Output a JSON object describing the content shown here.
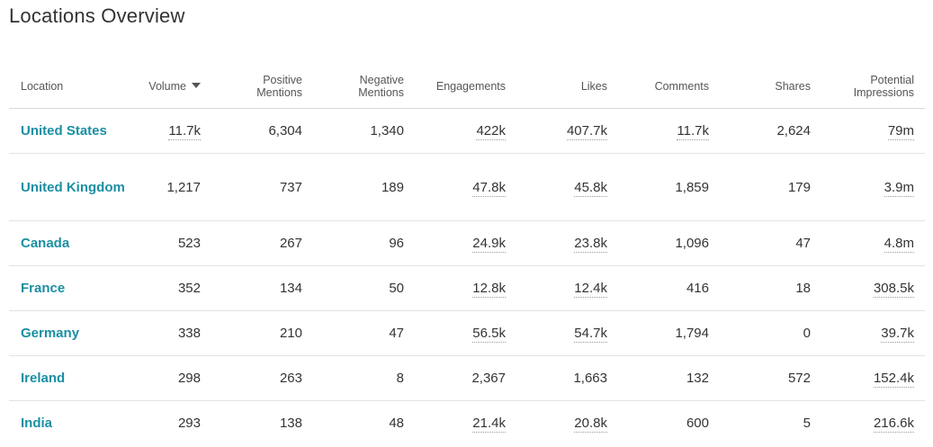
{
  "page": {
    "title": "Locations Overview"
  },
  "table": {
    "columns": [
      {
        "key": "location",
        "label": "Location"
      },
      {
        "key": "volume",
        "label": "Volume",
        "sorted": "desc"
      },
      {
        "key": "positive",
        "label_lines": [
          "Positive",
          "Mentions"
        ]
      },
      {
        "key": "negative",
        "label_lines": [
          "Negative",
          "Mentions"
        ]
      },
      {
        "key": "engagements",
        "label": "Engagements"
      },
      {
        "key": "likes",
        "label": "Likes"
      },
      {
        "key": "comments",
        "label": "Comments"
      },
      {
        "key": "shares",
        "label": "Shares"
      },
      {
        "key": "impressions",
        "label_lines": [
          "Potential",
          "Impressions"
        ]
      }
    ],
    "rows": [
      {
        "location": "United States",
        "volume": "11.7k",
        "positive": "6,304",
        "negative": "1,340",
        "engagements": "422k",
        "likes": "407.7k",
        "comments": "11.7k",
        "shares": "2,624",
        "impressions": "79m"
      },
      {
        "location": "United Kingdom",
        "volume": "1,217",
        "positive": "737",
        "negative": "189",
        "engagements": "47.8k",
        "likes": "45.8k",
        "comments": "1,859",
        "shares": "179",
        "impressions": "3.9m"
      },
      {
        "location": "Canada",
        "volume": "523",
        "positive": "267",
        "negative": "96",
        "engagements": "24.9k",
        "likes": "23.8k",
        "comments": "1,096",
        "shares": "47",
        "impressions": "4.8m"
      },
      {
        "location": "France",
        "volume": "352",
        "positive": "134",
        "negative": "50",
        "engagements": "12.8k",
        "likes": "12.4k",
        "comments": "416",
        "shares": "18",
        "impressions": "308.5k"
      },
      {
        "location": "Germany",
        "volume": "338",
        "positive": "210",
        "negative": "47",
        "engagements": "56.5k",
        "likes": "54.7k",
        "comments": "1,794",
        "shares": "0",
        "impressions": "39.7k"
      },
      {
        "location": "Ireland",
        "volume": "298",
        "positive": "263",
        "negative": "8",
        "engagements": "2,367",
        "likes": "1,663",
        "comments": "132",
        "shares": "572",
        "impressions": "152.4k"
      },
      {
        "location": "India",
        "volume": "293",
        "positive": "138",
        "negative": "48",
        "engagements": "21.4k",
        "likes": "20.8k",
        "comments": "600",
        "shares": "5",
        "impressions": "216.6k"
      }
    ]
  },
  "colors": {
    "link": "#1a8fa3",
    "text": "#333333",
    "header_text": "#555555",
    "divider": "#e3e3e3"
  }
}
